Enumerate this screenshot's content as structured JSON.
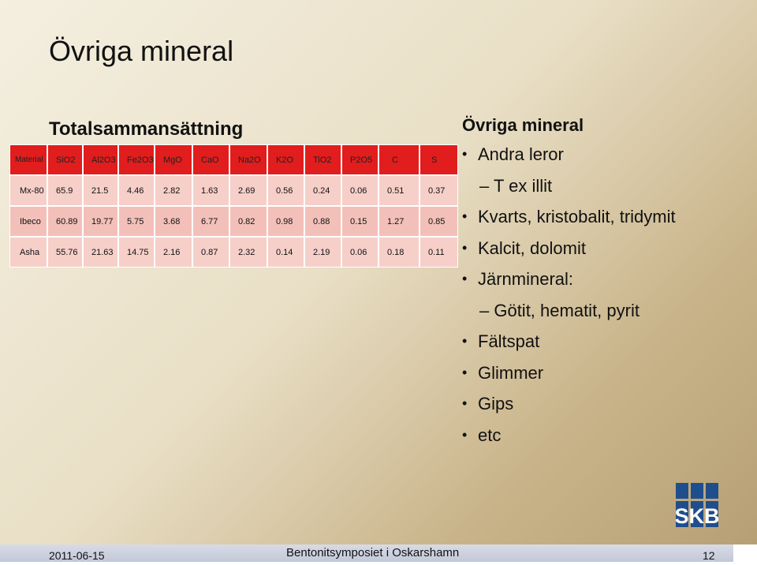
{
  "slide": {
    "title": "Övriga mineral",
    "table_title": "Totalsammansättning"
  },
  "table": {
    "headers": [
      "Material",
      "SiO2",
      "Al2O3",
      "Fe2O3",
      "MgO",
      "CaO",
      "Na2O",
      "K2O",
      "TiO2",
      "P2O5",
      "C",
      "S"
    ],
    "rows": [
      [
        "Mx-80",
        "65.9",
        "21.5",
        "4.46",
        "2.82",
        "1.63",
        "2.69",
        "0.56",
        "0.24",
        "0.06",
        "0.51",
        "0.37"
      ],
      [
        "Ibeco",
        "60.89",
        "19.77",
        "5.75",
        "3.68",
        "6.77",
        "0.82",
        "0.98",
        "0.88",
        "0.15",
        "1.27",
        "0.85"
      ],
      [
        "Asha",
        "55.76",
        "21.63",
        "14.75",
        "2.16",
        "0.87",
        "2.32",
        "0.14",
        "2.19",
        "0.06",
        "0.18",
        "0.11"
      ]
    ]
  },
  "panel": {
    "heading": "Övriga mineral",
    "items": [
      {
        "level": 1,
        "text": "Andra leror"
      },
      {
        "level": 2,
        "text": "– T ex illit"
      },
      {
        "level": 1,
        "text": "Kvarts, kristobalit, tridymit"
      },
      {
        "level": 1,
        "text": "Kalcit, dolomit"
      },
      {
        "level": 1,
        "text": "Järnmineral:"
      },
      {
        "level": 2,
        "text": "– Götit, hematit, pyrit"
      },
      {
        "level": 1,
        "text": "Fältspat"
      },
      {
        "level": 1,
        "text": "Glimmer"
      },
      {
        "level": 1,
        "text": "Gips"
      },
      {
        "level": 1,
        "text": "etc"
      }
    ]
  },
  "footer": {
    "date": "2011-06-15",
    "title": "Bentonitsymposiet i Oskarshamn",
    "page": "12"
  },
  "logo": {
    "text": "SKB",
    "color": "#1f4e8c"
  },
  "colors": {
    "table_header": "#e11d1d",
    "table_row": "#f6cfc9",
    "logo": "#1f4e8c"
  }
}
